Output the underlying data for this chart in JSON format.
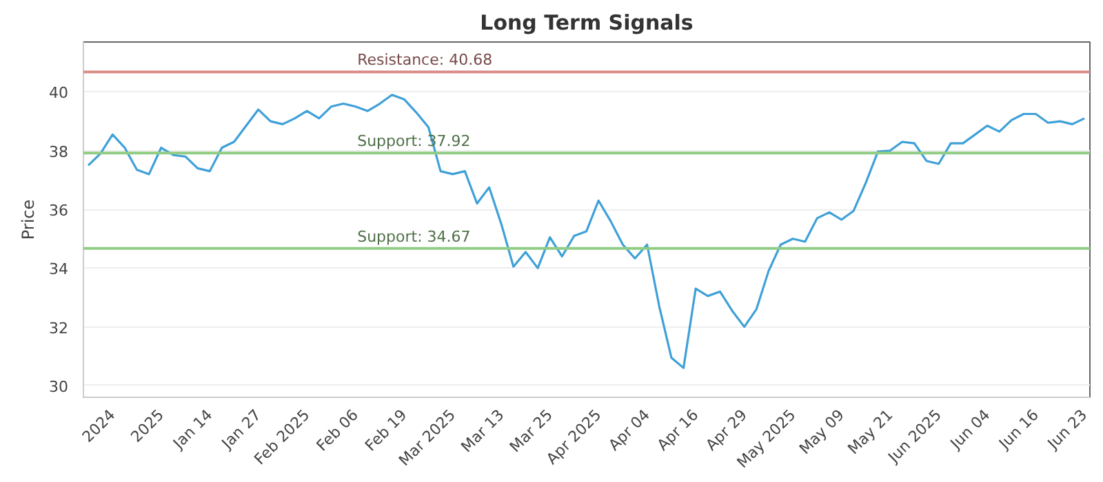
{
  "chart_data": {
    "type": "line",
    "title": "Long Term Signals",
    "ylabel": "Price",
    "categories": [
      null,
      null,
      "2024",
      null,
      null,
      null,
      "2025",
      null,
      null,
      null,
      "Jan 14",
      null,
      null,
      null,
      "Jan 27",
      null,
      null,
      null,
      "Feb 2025",
      null,
      null,
      null,
      "Feb 06",
      null,
      null,
      null,
      "Feb 19",
      null,
      null,
      null,
      "Mar 2025",
      null,
      null,
      null,
      "Mar 13",
      null,
      null,
      null,
      "Mar 25",
      null,
      null,
      null,
      "Apr 2025",
      null,
      null,
      null,
      "Apr 04",
      null,
      null,
      null,
      "Apr 16",
      null,
      null,
      null,
      "Apr 29",
      null,
      null,
      null,
      "May 2025",
      null,
      null,
      null,
      "May 09",
      null,
      null,
      null,
      "May 21",
      null,
      null,
      null,
      "Jun 2025",
      null,
      null,
      null,
      "Jun 04",
      null,
      null,
      null,
      "Jun 16",
      null,
      null,
      null,
      "Jun 23"
    ],
    "series": [
      {
        "color": "#3fa0d8",
        "values": [
          37.5,
          37.9,
          38.55,
          38.1,
          37.35,
          37.2,
          38.1,
          37.85,
          37.8,
          37.4,
          37.3,
          38.1,
          38.3,
          38.85,
          39.4,
          39.0,
          38.9,
          39.1,
          39.35,
          39.1,
          39.5,
          39.6,
          39.5,
          39.35,
          39.6,
          39.9,
          39.75,
          39.3,
          38.8,
          37.3,
          37.2,
          37.3,
          36.2,
          36.75,
          35.5,
          34.05,
          34.55,
          34.0,
          35.05,
          34.4,
          35.1,
          35.25,
          36.3,
          35.6,
          34.8,
          34.33,
          34.8,
          32.7,
          30.95,
          30.6,
          33.3,
          33.05,
          33.2,
          32.55,
          32.0,
          32.6,
          33.9,
          34.8,
          35.0,
          34.9,
          35.7,
          35.9,
          35.65,
          35.95,
          36.9,
          37.97,
          38.0,
          38.3,
          38.25,
          37.65,
          37.55,
          38.25,
          38.25,
          38.55,
          38.85,
          38.65,
          39.04,
          39.25,
          39.25,
          38.95,
          39.0,
          38.9,
          39.1
        ]
      }
    ],
    "ylim": [
      29.6,
      41.7
    ],
    "yticks": [
      30,
      32,
      34,
      36,
      38,
      40
    ],
    "grid": "y",
    "marker": "none",
    "line_style": "solid",
    "ref_lines": [
      {
        "axis": "y",
        "value": 40.68,
        "label": "Resistance: 40.68",
        "color": "#d98a86"
      },
      {
        "axis": "y",
        "value": 37.92,
        "label": "Support: 37.92",
        "color": "#90cc84"
      },
      {
        "axis": "y",
        "value": 34.67,
        "label": "Support: 34.67",
        "color": "#90cc84"
      }
    ]
  }
}
